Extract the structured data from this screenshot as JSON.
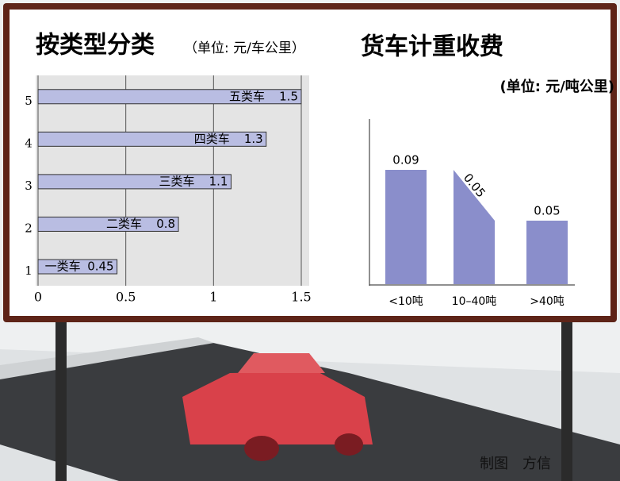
{
  "chart_data": [
    {
      "type": "barh",
      "title": "按类型分类",
      "subtitle": "（单位: 元/车公里）",
      "categories": [
        "1",
        "2",
        "3",
        "4",
        "5"
      ],
      "bar_labels": [
        "一类车",
        "二类车",
        "三类车",
        "四类车",
        "五类车"
      ],
      "values": [
        0.45,
        0.8,
        1.1,
        1.3,
        1.5
      ],
      "color": "#b9bde2",
      "xlim": [
        0,
        1.5
      ],
      "xticks": [
        0,
        0.5,
        1,
        1.5
      ],
      "grid": true
    },
    {
      "type": "bar",
      "title": "货车计重收费",
      "subtitle": "(单位: 元/吨公里)",
      "categories": [
        "<10吨",
        "10–40吨",
        ">40吨"
      ],
      "values": [
        0.09,
        0.05,
        0.05
      ],
      "color": "#8a8ecb"
    }
  ],
  "credit": "制图　方信"
}
